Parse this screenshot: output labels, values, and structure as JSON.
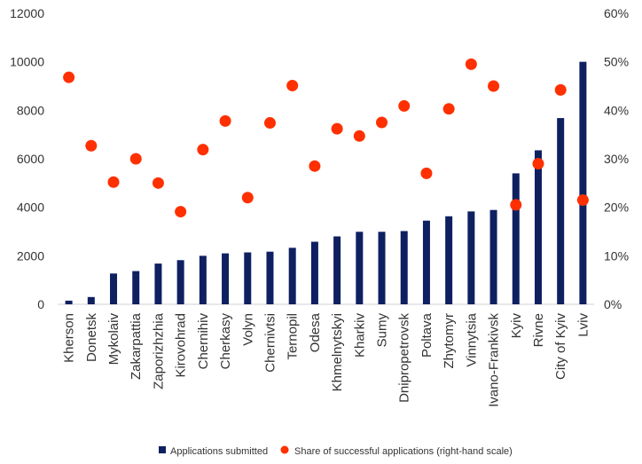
{
  "chart_data": {
    "type": "bar",
    "categories": [
      "Kherson",
      "Donetsk",
      "Mykolaiv",
      "Zakarpattia",
      "Zaporizhzhia",
      "Kirovohrad",
      "Chernihiv",
      "Cherkasy",
      "Volyn",
      "Chernivtsi",
      "Ternopil",
      "Odesa",
      "Khmelnytskyi",
      "Kharkiv",
      "Sumy",
      "Dnipropetrovsk",
      "Poltava",
      "Zhytomyr",
      "Vinnytsia",
      "Ivano-Frankivsk",
      "Kyiv",
      "Rivne",
      "City of Kyiv",
      "Lviv"
    ],
    "series": [
      {
        "name": "Applications submitted",
        "type": "bar",
        "axis": "left",
        "color": "#0e2060",
        "values": [
          150,
          300,
          1270,
          1370,
          1680,
          1820,
          2000,
          2100,
          2140,
          2170,
          2330,
          2580,
          2800,
          2990,
          2990,
          3020,
          3450,
          3630,
          3830,
          3890,
          5400,
          6350,
          7680,
          10000
        ]
      },
      {
        "name": "Share of successful applications (right-hand scale)",
        "type": "scatter",
        "axis": "right",
        "color": "#ff3000",
        "values": [
          46.8,
          32.7,
          25.2,
          30.0,
          25.0,
          19.1,
          31.9,
          37.8,
          22.0,
          37.4,
          45.1,
          28.5,
          36.2,
          34.7,
          37.5,
          40.9,
          27.0,
          40.3,
          49.5,
          45.0,
          20.5,
          29.0,
          44.2,
          21.5
        ]
      }
    ],
    "y_left": {
      "min": 0,
      "max": 12000,
      "step": 2000,
      "ticks": [
        "0",
        "2000",
        "4000",
        "6000",
        "8000",
        "10000",
        "12000"
      ]
    },
    "y_right": {
      "min": 0,
      "max": 60,
      "step": 10,
      "ticks": [
        "0%",
        "10%",
        "20%",
        "30%",
        "40%",
        "50%",
        "60%"
      ]
    },
    "grid": false,
    "legend_position": "bottom"
  }
}
